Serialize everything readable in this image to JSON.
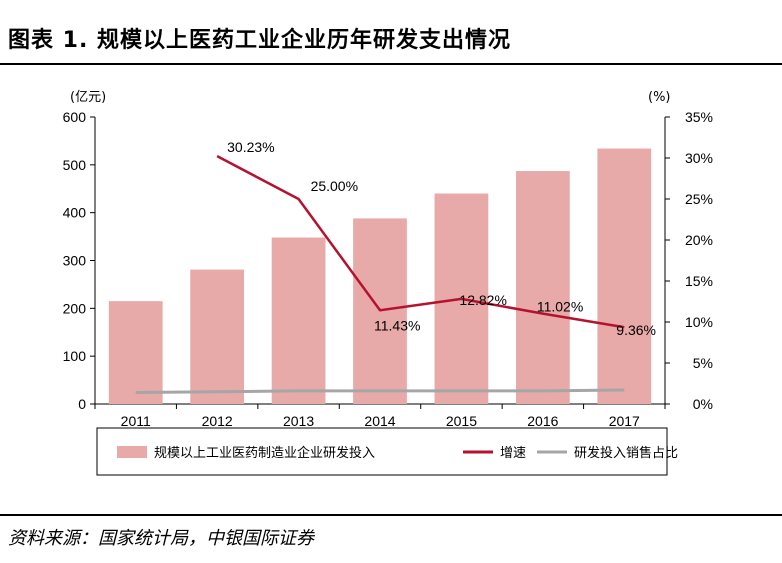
{
  "header": {
    "title": "图表 1. 规模以上医药工业企业历年研发支出情况"
  },
  "footer": {
    "source": "资料来源：国家统计局，中银国际证券"
  },
  "chart_data": {
    "type": "bar",
    "categories": [
      "2011",
      "2012",
      "2013",
      "2014",
      "2015",
      "2016",
      "2017"
    ],
    "y_unit_left": "(亿元)",
    "y_unit_right": "(%)",
    "ylim": [
      0,
      600
    ],
    "y_ticks": [
      "0",
      "100",
      "200",
      "300",
      "400",
      "500",
      "600"
    ],
    "y2lim": [
      0,
      35
    ],
    "y2_ticks": [
      "0%",
      "5%",
      "10%",
      "15%",
      "20%",
      "25%",
      "30%",
      "35%"
    ],
    "legend_position": "bottom",
    "grid": false,
    "series": [
      {
        "name": "规模以上工业医药制造业企业研发投入",
        "type": "bar",
        "axis": "left",
        "color": "#e8a9a9",
        "values": [
          215,
          281,
          348,
          388,
          440,
          487,
          534
        ]
      },
      {
        "name": "增速",
        "type": "line",
        "axis": "right",
        "color": "#b5122f",
        "values": [
          null,
          30.23,
          25.0,
          11.43,
          12.82,
          11.02,
          9.36
        ],
        "labels": [
          "",
          "30.23%",
          "25.00%",
          "11.43%",
          "12.82%",
          "11.02%",
          "9.36%"
        ]
      },
      {
        "name": "研发投入销售占比",
        "type": "line",
        "axis": "right",
        "color": "#a6a6a6",
        "values": [
          1.4,
          1.5,
          1.6,
          1.6,
          1.6,
          1.6,
          1.7
        ]
      }
    ]
  }
}
